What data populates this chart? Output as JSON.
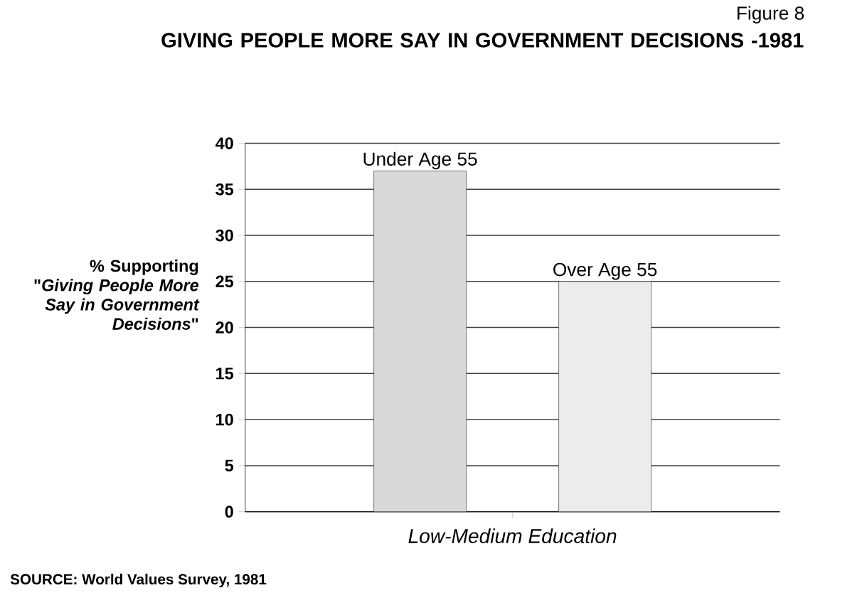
{
  "chart_data": {
    "type": "bar",
    "title": "GIVING PEOPLE MORE SAY IN GOVERNMENT DECISIONS -1981",
    "ylabel": "% Supporting \"*Giving People More Say in Government Decisions*\"",
    "categories": [
      "Low-Medium Education"
    ],
    "series": [
      {
        "name": "Under Age 55",
        "color": "#d9d9d9",
        "values": [
          37
        ]
      },
      {
        "name": "Over Age 55",
        "color": "#ececec",
        "values": [
          25
        ]
      }
    ],
    "ylim": [
      0,
      40
    ],
    "yticks": [
      0,
      5,
      10,
      15,
      20,
      25,
      30,
      35,
      40
    ],
    "grid": "y",
    "annotations": [
      "Figure 8",
      "SOURCE:  World Values Survey, 1981"
    ]
  }
}
